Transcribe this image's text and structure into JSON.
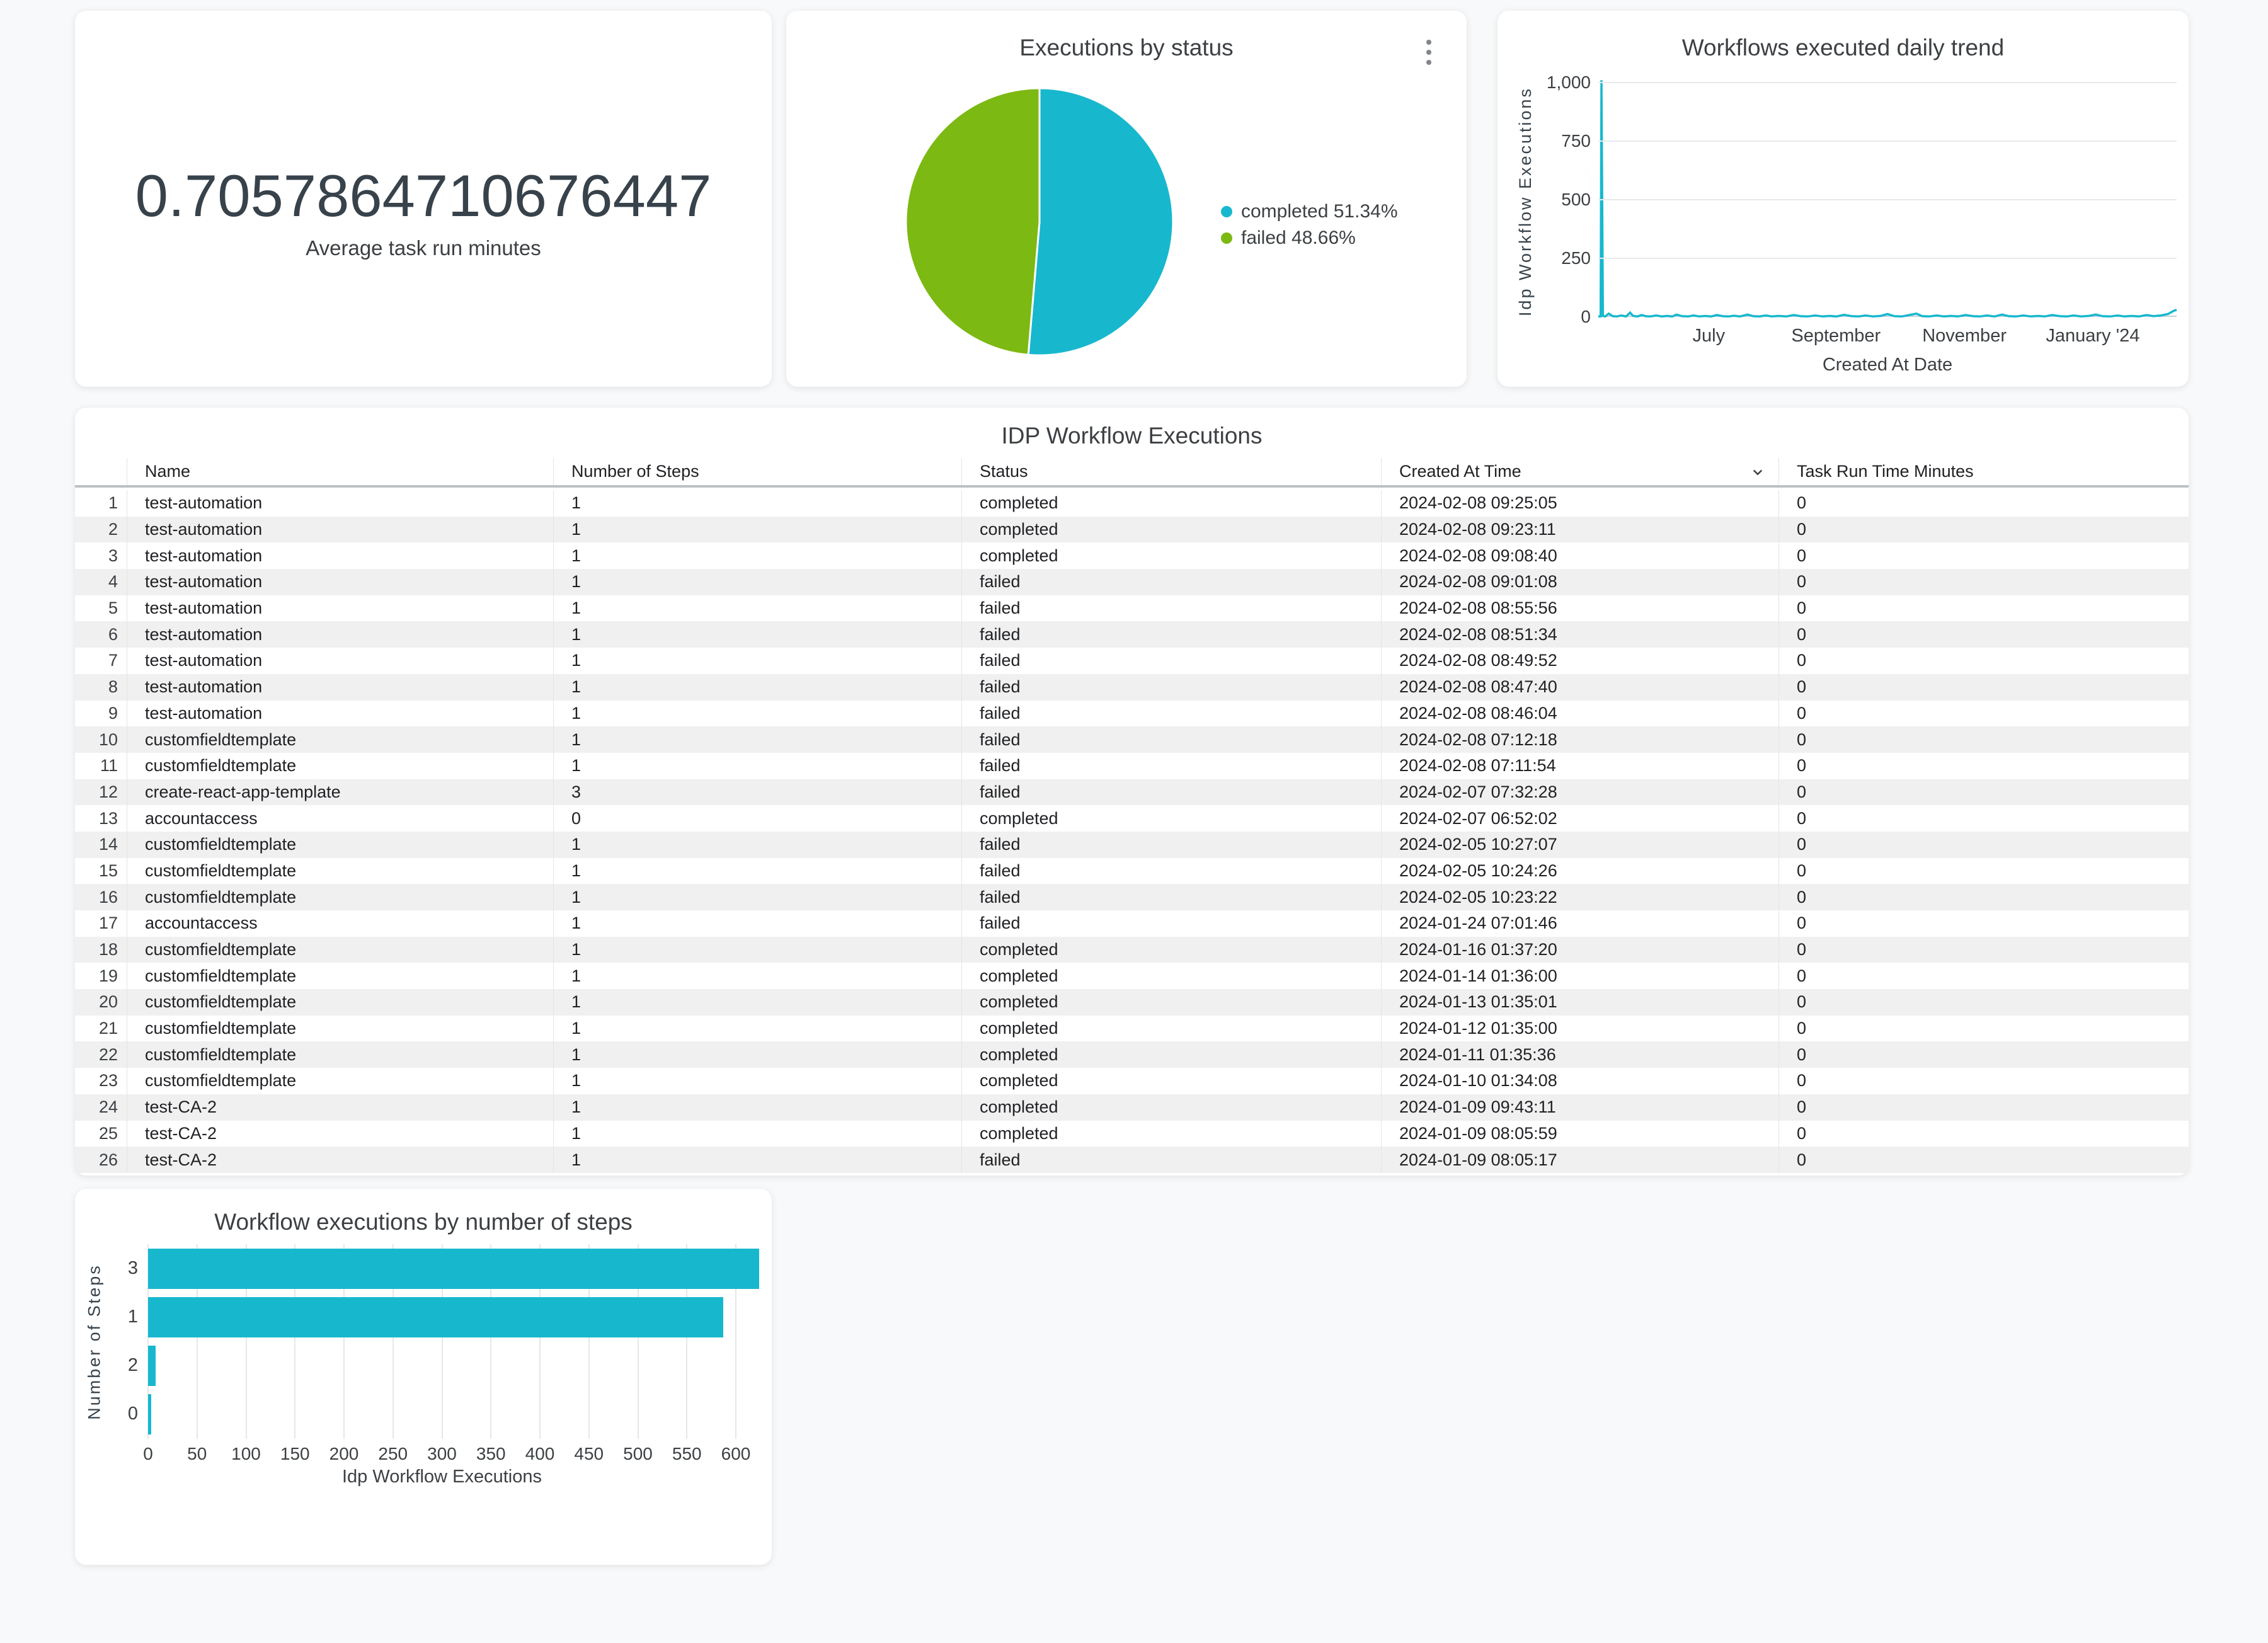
{
  "page_background": "#F8F9FA",
  "colors": {
    "series_cyan": "#17B8CE",
    "series_green": "#7CB913",
    "text_dark": "#3C4043",
    "grid_gray": "#E8EAEB",
    "row_stripe": "#F0F0F0"
  },
  "icons": {
    "kebab_menu": "more-options-vertical",
    "sort_indicator": "chevron-down"
  },
  "scorecard": {
    "value": "0.7057864710676447",
    "label": "Average task run minutes"
  },
  "chart_data": [
    {
      "id": "executions_by_status",
      "type": "pie",
      "title": "Executions by status",
      "labels": [
        "completed",
        "failed"
      ],
      "values": [
        51.34,
        48.66
      ],
      "unit": "percent",
      "colors": [
        "#17B8CE",
        "#7CB913"
      ],
      "legend_position": "right",
      "legend": [
        "completed 51.34%",
        "failed 48.66%"
      ]
    },
    {
      "id": "workflows_executed_daily_trend",
      "type": "line",
      "title": "Workflows executed daily trend",
      "xlabel": "Created At Date",
      "ylabel": "Idp Workflow Executions",
      "ylim": [
        0,
        1000
      ],
      "yticks": [
        {
          "v": 0,
          "label": "0"
        },
        {
          "v": 250,
          "label": "250"
        },
        {
          "v": 500,
          "label": "500"
        },
        {
          "v": 750,
          "label": "750"
        },
        {
          "v": 1000,
          "label": "1,000"
        }
      ],
      "xticks": [
        {
          "f": 0.191,
          "label": "July"
        },
        {
          "f": 0.411,
          "label": "September"
        },
        {
          "f": 0.633,
          "label": "November"
        },
        {
          "f": 0.855,
          "label": "January '24"
        }
      ],
      "grid": true,
      "color": "#17B8CE",
      "points": [
        [
          0.0,
          2
        ],
        [
          0.004,
          2
        ],
        [
          0.0055,
          1010
        ],
        [
          0.008,
          4
        ],
        [
          0.012,
          2
        ],
        [
          0.018,
          14
        ],
        [
          0.025,
          3
        ],
        [
          0.032,
          2
        ],
        [
          0.04,
          6
        ],
        [
          0.048,
          2
        ],
        [
          0.055,
          18
        ],
        [
          0.06,
          4
        ],
        [
          0.068,
          2
        ],
        [
          0.075,
          8
        ],
        [
          0.082,
          3
        ],
        [
          0.09,
          2
        ],
        [
          0.1,
          6
        ],
        [
          0.11,
          2
        ],
        [
          0.118,
          4
        ],
        [
          0.128,
          2
        ],
        [
          0.135,
          10
        ],
        [
          0.145,
          3
        ],
        [
          0.155,
          2
        ],
        [
          0.165,
          6
        ],
        [
          0.175,
          2
        ],
        [
          0.185,
          4
        ],
        [
          0.195,
          2
        ],
        [
          0.205,
          8
        ],
        [
          0.215,
          3
        ],
        [
          0.225,
          2
        ],
        [
          0.235,
          5
        ],
        [
          0.245,
          2
        ],
        [
          0.258,
          10
        ],
        [
          0.268,
          3
        ],
        [
          0.278,
          2
        ],
        [
          0.29,
          6
        ],
        [
          0.3,
          2
        ],
        [
          0.312,
          4
        ],
        [
          0.325,
          2
        ],
        [
          0.338,
          8
        ],
        [
          0.35,
          3
        ],
        [
          0.362,
          2
        ],
        [
          0.375,
          6
        ],
        [
          0.388,
          2
        ],
        [
          0.4,
          4
        ],
        [
          0.412,
          2
        ],
        [
          0.425,
          9
        ],
        [
          0.438,
          3
        ],
        [
          0.45,
          2
        ],
        [
          0.462,
          6
        ],
        [
          0.475,
          2
        ],
        [
          0.488,
          4
        ],
        [
          0.5,
          12
        ],
        [
          0.512,
          3
        ],
        [
          0.525,
          2
        ],
        [
          0.538,
          8
        ],
        [
          0.55,
          14
        ],
        [
          0.56,
          3
        ],
        [
          0.572,
          2
        ],
        [
          0.585,
          6
        ],
        [
          0.598,
          2
        ],
        [
          0.61,
          4
        ],
        [
          0.622,
          2
        ],
        [
          0.635,
          8
        ],
        [
          0.648,
          3
        ],
        [
          0.66,
          2
        ],
        [
          0.672,
          6
        ],
        [
          0.685,
          2
        ],
        [
          0.698,
          10
        ],
        [
          0.71,
          3
        ],
        [
          0.722,
          2
        ],
        [
          0.735,
          6
        ],
        [
          0.748,
          2
        ],
        [
          0.76,
          4
        ],
        [
          0.772,
          2
        ],
        [
          0.785,
          8
        ],
        [
          0.798,
          3
        ],
        [
          0.81,
          2
        ],
        [
          0.822,
          6
        ],
        [
          0.835,
          2
        ],
        [
          0.848,
          4
        ],
        [
          0.86,
          10
        ],
        [
          0.872,
          3
        ],
        [
          0.885,
          2
        ],
        [
          0.898,
          6
        ],
        [
          0.91,
          2
        ],
        [
          0.922,
          4
        ],
        [
          0.935,
          2
        ],
        [
          0.948,
          8
        ],
        [
          0.96,
          3
        ],
        [
          0.972,
          6
        ],
        [
          0.985,
          12
        ],
        [
          0.995,
          26
        ],
        [
          1.0,
          30
        ]
      ]
    },
    {
      "id": "workflow_executions_by_number_of_steps",
      "type": "bar",
      "orientation": "horizontal",
      "title": "Workflow executions by number of steps",
      "categories": [
        "3",
        "1",
        "2",
        "0"
      ],
      "values": [
        624,
        587,
        8,
        3
      ],
      "xlabel": "Idp Workflow Executions",
      "ylabel": "Number of Steps",
      "xlim": [
        0,
        627
      ],
      "xticks": [
        0,
        50,
        100,
        150,
        200,
        250,
        300,
        350,
        400,
        450,
        500,
        550,
        600
      ],
      "grid": true,
      "color": "#17B8CE"
    },
    {
      "id": "idp_workflow_executions_table",
      "type": "table",
      "title": "IDP Workflow Executions",
      "columns": [
        "",
        "Name",
        "Number of Steps",
        "Status",
        "Created At Time",
        "Task Run Time Minutes"
      ],
      "sorted_column": "Created At Time",
      "sort_direction": "desc",
      "rows": [
        [
          "1",
          "test-automation",
          "1",
          "completed",
          "2024-02-08 09:25:05",
          "0"
        ],
        [
          "2",
          "test-automation",
          "1",
          "completed",
          "2024-02-08 09:23:11",
          "0"
        ],
        [
          "3",
          "test-automation",
          "1",
          "completed",
          "2024-02-08 09:08:40",
          "0"
        ],
        [
          "4",
          "test-automation",
          "1",
          "failed",
          "2024-02-08 09:01:08",
          "0"
        ],
        [
          "5",
          "test-automation",
          "1",
          "failed",
          "2024-02-08 08:55:56",
          "0"
        ],
        [
          "6",
          "test-automation",
          "1",
          "failed",
          "2024-02-08 08:51:34",
          "0"
        ],
        [
          "7",
          "test-automation",
          "1",
          "failed",
          "2024-02-08 08:49:52",
          "0"
        ],
        [
          "8",
          "test-automation",
          "1",
          "failed",
          "2024-02-08 08:47:40",
          "0"
        ],
        [
          "9",
          "test-automation",
          "1",
          "failed",
          "2024-02-08 08:46:04",
          "0"
        ],
        [
          "10",
          "customfieldtemplate",
          "1",
          "failed",
          "2024-02-08 07:12:18",
          "0"
        ],
        [
          "11",
          "customfieldtemplate",
          "1",
          "failed",
          "2024-02-08 07:11:54",
          "0"
        ],
        [
          "12",
          "create-react-app-template",
          "3",
          "failed",
          "2024-02-07 07:32:28",
          "0"
        ],
        [
          "13",
          "accountaccess",
          "0",
          "completed",
          "2024-02-07 06:52:02",
          "0"
        ],
        [
          "14",
          "customfieldtemplate",
          "1",
          "failed",
          "2024-02-05 10:27:07",
          "0"
        ],
        [
          "15",
          "customfieldtemplate",
          "1",
          "failed",
          "2024-02-05 10:24:26",
          "0"
        ],
        [
          "16",
          "customfieldtemplate",
          "1",
          "failed",
          "2024-02-05 10:23:22",
          "0"
        ],
        [
          "17",
          "accountaccess",
          "1",
          "failed",
          "2024-01-24 07:01:46",
          "0"
        ],
        [
          "18",
          "customfieldtemplate",
          "1",
          "completed",
          "2024-01-16 01:37:20",
          "0"
        ],
        [
          "19",
          "customfieldtemplate",
          "1",
          "completed",
          "2024-01-14 01:36:00",
          "0"
        ],
        [
          "20",
          "customfieldtemplate",
          "1",
          "completed",
          "2024-01-13 01:35:01",
          "0"
        ],
        [
          "21",
          "customfieldtemplate",
          "1",
          "completed",
          "2024-01-12 01:35:00",
          "0"
        ],
        [
          "22",
          "customfieldtemplate",
          "1",
          "completed",
          "2024-01-11 01:35:36",
          "0"
        ],
        [
          "23",
          "customfieldtemplate",
          "1",
          "completed",
          "2024-01-10 01:34:08",
          "0"
        ],
        [
          "24",
          "test-CA-2",
          "1",
          "completed",
          "2024-01-09 09:43:11",
          "0"
        ],
        [
          "25",
          "test-CA-2",
          "1",
          "completed",
          "2024-01-09 08:05:59",
          "0"
        ],
        [
          "26",
          "test-CA-2",
          "1",
          "failed",
          "2024-01-09 08:05:17",
          "0"
        ]
      ]
    }
  ]
}
